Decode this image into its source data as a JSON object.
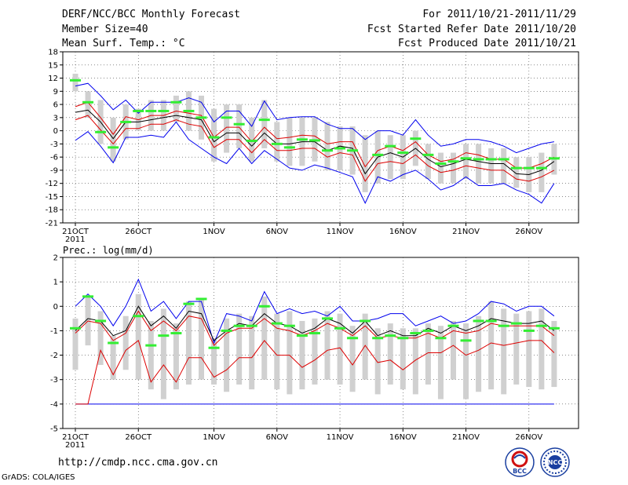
{
  "header": {
    "title": "DERF/NCC/BCC Monthly Forecast",
    "member_size": "Member Size=40",
    "variable": "Mean Surf. Temp.: °C",
    "period": "For 2011/10/21-2011/11/29",
    "start_date": "Fcst Started Refer Date 2011/10/20",
    "produced_date": "Fcst Produced Date 2011/10/21"
  },
  "footer": {
    "url": "http://cmdp.ncc.cma.gov.cn",
    "grads": "GrADS: COLA/IGES",
    "logo_bcc_text": "BCC",
    "logo_ncc_text": "NCC"
  },
  "colors": {
    "ensemble_max": "#0000ee",
    "ensemble_min": "#0000ee",
    "upper_spread": "#dd0000",
    "lower_spread": "#dd0000",
    "ensemble_mean": "#000000",
    "observed_bar": "#33ee33",
    "member_range_bar": "#d0d0d0",
    "grid": "#444444"
  },
  "chart_data": [
    {
      "type": "line",
      "title": "Mean Surf. Temp.: °C",
      "x_start_day": 0,
      "x_tick_labels": [
        "21OCT",
        "26OCT",
        "1NOV",
        "6NOV",
        "11NOV",
        "16NOV",
        "21NOV",
        "26NOV"
      ],
      "x_tick_days": [
        0,
        5,
        11,
        16,
        21,
        26,
        31,
        36
      ],
      "year_label": "2011",
      "ylim": [
        -21,
        18
      ],
      "y_ticks": [
        -21,
        -18,
        -15,
        -12,
        -9,
        -6,
        -3,
        0,
        3,
        6,
        9,
        12,
        15,
        18
      ],
      "series": [
        {
          "name": "ensemble_max",
          "values": [
            10.2,
            10.8,
            8,
            4.8,
            7,
            4,
            6.5,
            6.5,
            6.5,
            7.5,
            6.5,
            2,
            4.5,
            4.5,
            1,
            6.8,
            2.5,
            3,
            3.2,
            3.2,
            1.5,
            0.5,
            0.5,
            -2,
            0,
            0,
            -1,
            2.5,
            -1,
            -3.5,
            -3,
            -2,
            -2,
            -2.5,
            -3.5,
            -5,
            -4,
            -3,
            -2.5
          ]
        },
        {
          "name": "upper_spread",
          "values": [
            5.5,
            6.5,
            3,
            -0.8,
            3.2,
            2.5,
            3.5,
            3.5,
            4.5,
            4,
            3.5,
            -1.5,
            0.8,
            0.8,
            -2.5,
            0.8,
            -1.8,
            -1.5,
            -1,
            -1.2,
            -3,
            -2.5,
            -2.5,
            -8.2,
            -4.5,
            -3.5,
            -4.5,
            -2.5,
            -5.5,
            -7,
            -6.5,
            -5,
            -5.5,
            -6.5,
            -6.5,
            -8.5,
            -8.5,
            -7.5,
            -6
          ]
        },
        {
          "name": "ensemble_mean",
          "values": [
            4.2,
            4.7,
            2,
            -1.8,
            2,
            2,
            2.5,
            3,
            3.5,
            3,
            2.5,
            -2.5,
            -0.5,
            -0.5,
            -3.5,
            -0.5,
            -3,
            -3,
            -2.5,
            -2.5,
            -4.5,
            -3.5,
            -4,
            -9.8,
            -6,
            -5,
            -6,
            -4,
            -6.5,
            -8.2,
            -7.5,
            -6.5,
            -7,
            -7.5,
            -7.5,
            -9.8,
            -10,
            -9,
            -7
          ]
        },
        {
          "name": "lower_spread",
          "values": [
            2.5,
            3.5,
            0.2,
            -3,
            0.5,
            0.5,
            1.5,
            1.5,
            2.5,
            1.5,
            1,
            -3.8,
            -2,
            -2,
            -5,
            -2,
            -4.5,
            -4.5,
            -4,
            -4,
            -6,
            -5,
            -5.5,
            -11.5,
            -7.5,
            -7,
            -7.5,
            -5.5,
            -8,
            -9.5,
            -9,
            -8,
            -8.5,
            -9,
            -9,
            -11,
            -11.5,
            -10.5,
            -9
          ]
        },
        {
          "name": "ensemble_min",
          "values": [
            -2.2,
            -0.2,
            -3.5,
            -7.3,
            -1.5,
            -1.5,
            -1,
            -1.5,
            2,
            -2,
            -4,
            -6,
            -7.5,
            -4,
            -7.5,
            -4.5,
            -6.5,
            -8.5,
            -9,
            -7.8,
            -8.5,
            -9.5,
            -10.5,
            -16.5,
            -10.5,
            -11.5,
            -10,
            -9,
            -11,
            -13.5,
            -12.5,
            -10.5,
            -12.5,
            -12.5,
            -12,
            -13.5,
            -14.5,
            -16.5,
            -12
          ]
        },
        {
          "name": "observed",
          "values": [
            11.5,
            6.5,
            -0.3,
            -3.8,
            2,
            4.5,
            4.5,
            4.5,
            6.5,
            4.5,
            3,
            -1.5,
            3,
            1.5,
            -2.3,
            2.5,
            -3,
            -3.8,
            -2,
            -2.2,
            -4.5,
            -4,
            -4.5,
            null,
            -5.5,
            -3.5,
            -5,
            -1.8,
            -5.5,
            -7.5,
            -7,
            -6.3,
            -6.5,
            -6.5,
            -6.5,
            -8.5,
            -8.5,
            -8.5,
            -6.3
          ]
        },
        {
          "name": "member_range_top",
          "values": [
            13,
            9,
            7,
            3,
            6,
            5,
            7,
            7,
            8,
            9,
            8,
            5,
            6,
            6,
            3,
            7,
            2,
            3,
            3,
            3,
            2,
            1,
            1,
            -1,
            0,
            -1,
            -1,
            0,
            -3,
            -5,
            -5,
            -3,
            -3,
            -4,
            -4,
            -6,
            -6,
            -5,
            -3
          ]
        },
        {
          "name": "member_range_bottom",
          "values": [
            9,
            3,
            -3,
            -7,
            -2,
            0,
            0,
            0,
            2,
            0,
            -2,
            -7,
            -5,
            -4,
            -7,
            -4,
            -7,
            -8,
            -8,
            -7,
            -9,
            -9,
            -10,
            -14,
            -12,
            -11,
            -11,
            -8,
            -11,
            -12,
            -12,
            -11,
            -12,
            -12,
            -12,
            -13,
            -14,
            -14,
            -10
          ]
        }
      ]
    },
    {
      "type": "line",
      "title": "Prec.: log(mm/d)",
      "x_start_day": 0,
      "x_tick_labels": [
        "21OCT",
        "26OCT",
        "1NOV",
        "6NOV",
        "11NOV",
        "16NOV",
        "21NOV",
        "26NOV"
      ],
      "x_tick_days": [
        0,
        5,
        11,
        16,
        21,
        26,
        31,
        36
      ],
      "year_label": "2011",
      "ylim": [
        -5,
        2
      ],
      "y_ticks": [
        -5,
        -4,
        -3,
        -2,
        -1,
        0,
        1,
        2
      ],
      "series": [
        {
          "name": "ensemble_max",
          "values": [
            0,
            0.5,
            0,
            -0.8,
            0,
            1.1,
            -0.2,
            0.2,
            -0.5,
            0.2,
            0.2,
            -1.5,
            -0.3,
            -0.4,
            -0.6,
            0.6,
            -0.3,
            -0.1,
            -0.3,
            -0.2,
            -0.4,
            0,
            -0.6,
            -0.6,
            -0.5,
            -0.3,
            -0.3,
            -0.8,
            -0.6,
            -0.4,
            -0.7,
            -0.6,
            -0.3,
            0.2,
            0.1,
            -0.2,
            0,
            0,
            -0.4
          ]
        },
        {
          "name": "ensemble_mean",
          "values": [
            -1,
            -0.5,
            -0.6,
            -1.2,
            -1,
            0,
            -0.8,
            -0.4,
            -0.9,
            -0.2,
            -0.3,
            -1.4,
            -1,
            -0.7,
            -0.8,
            -0.3,
            -0.7,
            -0.8,
            -1.1,
            -0.9,
            -0.5,
            -0.7,
            -1.1,
            -0.6,
            -1.2,
            -1,
            -1.2,
            -1.2,
            -0.9,
            -1.1,
            -0.8,
            -1,
            -0.8,
            -0.5,
            -0.6,
            -0.7,
            -0.7,
            -0.6,
            -1
          ]
        },
        {
          "name": "upper_spread",
          "values": [
            -1.1,
            -0.6,
            -0.7,
            -1.4,
            -1.1,
            -0.2,
            -1,
            -0.6,
            -1,
            -0.4,
            -0.5,
            -1.6,
            -1.1,
            -0.9,
            -0.9,
            -0.5,
            -0.9,
            -1,
            -1.2,
            -1,
            -0.7,
            -0.9,
            -1.2,
            -0.8,
            -1.3,
            -1.2,
            -1.3,
            -1.3,
            -1.1,
            -1.3,
            -1,
            -1.1,
            -1,
            -0.7,
            -0.8,
            -0.8,
            -0.8,
            -0.8,
            -1.2
          ]
        },
        {
          "name": "lower_spread",
          "values": [
            -4,
            -4,
            -1.8,
            -2.8,
            -1.8,
            -1.4,
            -3.1,
            -2.4,
            -3.1,
            -2.1,
            -2.1,
            -2.9,
            -2.6,
            -2.1,
            -2.1,
            -1.4,
            -2,
            -2,
            -2.5,
            -2.2,
            -1.8,
            -1.7,
            -2.4,
            -1.6,
            -2.3,
            -2.2,
            -2.6,
            -2.2,
            -1.9,
            -1.9,
            -1.6,
            -2,
            -1.8,
            -1.5,
            -1.6,
            -1.5,
            -1.4,
            -1.4,
            -1.9
          ]
        },
        {
          "name": "ensemble_min",
          "values": [
            -4,
            -4,
            -4,
            -4,
            -4,
            -4,
            -4,
            -4,
            -4,
            -4,
            -4,
            -4,
            -4,
            -4,
            -4,
            -4,
            -4,
            -4,
            -4,
            -4,
            -4,
            -4,
            -4,
            -4,
            -4,
            -4,
            -4,
            -4,
            -4,
            -4,
            -4,
            -4,
            -4,
            -4,
            -4,
            -4,
            -4,
            -4,
            -4
          ]
        },
        {
          "name": "observed",
          "values": [
            -0.9,
            0.4,
            -0.6,
            -1.5,
            null,
            -0.4,
            -1.6,
            -1.2,
            -1.1,
            0.1,
            0.3,
            -1.7,
            -1.0,
            -0.8,
            -0.8,
            0.0,
            -0.7,
            -0.8,
            -1.2,
            -1.1,
            -0.5,
            -0.9,
            -1.3,
            -0.6,
            -1.3,
            -1.2,
            -1.3,
            -1.1,
            -1.0,
            -1.3,
            -0.8,
            -1.4,
            -0.6,
            -0.6,
            -0.8,
            -0.7,
            -1.0,
            -0.8,
            -0.9
          ]
        },
        {
          "name": "member_range_top",
          "values": [
            -0.5,
            0.4,
            -0.2,
            -1.2,
            -0.4,
            0.5,
            -0.6,
            -0.1,
            -0.7,
            0.2,
            0.3,
            -1.3,
            -0.5,
            -0.3,
            -0.4,
            0.4,
            -0.3,
            -0.2,
            -0.6,
            -0.5,
            -0.2,
            -0.3,
            -0.8,
            -0.3,
            -0.9,
            -0.7,
            -0.9,
            -0.9,
            -0.7,
            -0.8,
            -0.6,
            -0.7,
            -0.4,
            0.2,
            -0.1,
            -0.3,
            -0.2,
            -0.1,
            -0.6
          ]
        },
        {
          "name": "member_range_bottom",
          "values": [
            -2.6,
            -1.6,
            -2.4,
            -3.0,
            -2.6,
            -3.0,
            -3.4,
            -3.8,
            -3.4,
            -3.2,
            -3.0,
            -3.2,
            -3.5,
            -3.2,
            -3.4,
            -3.0,
            -3.4,
            -3.6,
            -3.4,
            -3.2,
            -3.0,
            -3.2,
            -3.5,
            -3.0,
            -3.6,
            -3.2,
            -3.4,
            -3.6,
            -3.2,
            -3.8,
            -3.0,
            -3.8,
            -3.5,
            -3.4,
            -3.6,
            -3.2,
            -3.3,
            -3.4,
            -3.3
          ]
        }
      ]
    }
  ]
}
